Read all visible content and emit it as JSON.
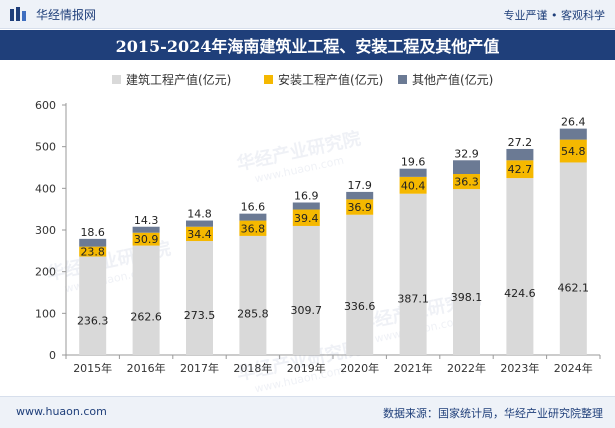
{
  "header": {
    "brand": "华经情报网",
    "slogan": "专业严谨 • 客观科学"
  },
  "footer": {
    "website": "www.huaon.com",
    "source": "数据来源：国家统计局，华经产业研究院整理"
  },
  "colors": {
    "construction": "#d9d9d9",
    "installation": "#f5b800",
    "other": "#6b7a94",
    "title_bg": "#1f3f7a"
  },
  "chart_data": {
    "type": "bar",
    "stacked": true,
    "title": "2015-2024年海南建筑业工程、安装工程及其他产值",
    "categories": [
      "2015年",
      "2016年",
      "2017年",
      "2018年",
      "2019年",
      "2020年",
      "2021年",
      "2022年",
      "2023年",
      "2024年"
    ],
    "series": [
      {
        "name": "建筑工程产值(亿元)",
        "values": [
          236.3,
          262.6,
          273.5,
          285.8,
          309.7,
          336.6,
          387.1,
          398.1,
          424.6,
          462.1
        ]
      },
      {
        "name": "安装工程产值(亿元)",
        "values": [
          23.8,
          30.9,
          34.4,
          36.8,
          39.4,
          36.9,
          40.4,
          36.3,
          42.7,
          54.8
        ]
      },
      {
        "name": "其他产值(亿元)",
        "values": [
          18.6,
          14.3,
          14.8,
          16.6,
          16.9,
          17.9,
          19.6,
          32.9,
          27.2,
          26.4
        ]
      }
    ],
    "ylim": [
      0,
      600
    ],
    "yticks": [
      0,
      100,
      200,
      300,
      400,
      500,
      600
    ],
    "legend_position": "top",
    "watermark": "华经产业研究院",
    "watermark_url": "www.huaon.com"
  }
}
